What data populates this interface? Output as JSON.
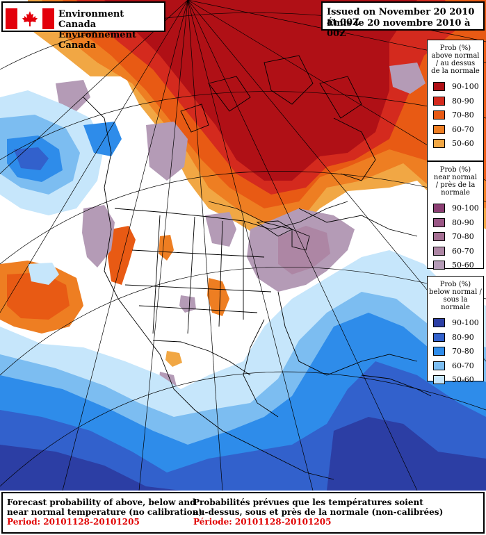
{
  "header": {
    "org_en": "Environment Canada",
    "org_fr": "Environnement Canada"
  },
  "issued": {
    "en": "Issued on November 20 2010 at 00Z",
    "fr": "Émis le 20 novembre 2010 à 00Z"
  },
  "legends": {
    "above": {
      "title_lines": [
        "Prob (%)",
        "above normal",
        "/ au dessus",
        "de la normale"
      ],
      "items": [
        {
          "label": "90-100",
          "color": "#b01016"
        },
        {
          "label": "80-90",
          "color": "#d42a1e"
        },
        {
          "label": "70-80",
          "color": "#e85a14"
        },
        {
          "label": "60-70",
          "color": "#ee7e22"
        },
        {
          "label": "50-60",
          "color": "#f1a744"
        }
      ]
    },
    "near": {
      "title_lines": [
        "Prob (%)",
        "near normal",
        "/ près de la",
        "normale"
      ],
      "items": [
        {
          "label": "90-100",
          "color": "#8a3d72"
        },
        {
          "label": "80-90",
          "color": "#9a5685"
        },
        {
          "label": "70-80",
          "color": "#a56f93"
        },
        {
          "label": "60-70",
          "color": "#ad86a4"
        },
        {
          "label": "50-60",
          "color": "#b49bb6"
        }
      ]
    },
    "below": {
      "title_lines": [
        "Prob (%)",
        "below normal /",
        "sous la normale"
      ],
      "items": [
        {
          "label": "90-100",
          "color": "#2c3ea4"
        },
        {
          "label": "80-90",
          "color": "#3261cc"
        },
        {
          "label": "70-80",
          "color": "#2e8cea"
        },
        {
          "label": "60-70",
          "color": "#7cbdf1"
        },
        {
          "label": "50-60",
          "color": "#c6e6fb"
        }
      ]
    }
  },
  "footer": {
    "en_line1": "Forecast probability of above, below and",
    "en_line2": "near normal temperature (no calibration)",
    "en_period": "Period: 20101128-20101205",
    "fr_line1": "Probabilités prévues que les températures soient",
    "fr_line2": "au-dessus, sous et près de la normale (non-calibrées)",
    "fr_period": "Période: 20101128-20101205"
  }
}
